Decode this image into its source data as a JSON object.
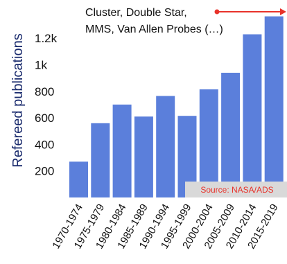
{
  "chart_data": {
    "type": "bar",
    "categories": [
      "1970-1974",
      "1975-1979",
      "1980-1984",
      "1985-1989",
      "1990-1994",
      "1995-1999",
      "2000-2004",
      "2005-2009",
      "2010-2014",
      "2015-2019"
    ],
    "values": [
      270,
      560,
      700,
      610,
      765,
      615,
      815,
      940,
      1230,
      1365
    ],
    "ylabel": "Refereed publications",
    "ytick_labels": [
      "200",
      "400",
      "600",
      "800",
      "1k",
      "1.2k"
    ],
    "ytick_values": [
      200,
      400,
      600,
      800,
      1000,
      1200
    ],
    "ylim": [
      0,
      1400
    ],
    "grid": false,
    "annotation": {
      "line1": "Cluster, Double Star,",
      "line2": "MMS, Van Allen Probes (…)"
    },
    "source": "Source: NASA/ADS",
    "colors": {
      "bar": "#5b7fdb",
      "arrow": "#e8322a",
      "source_box": "#d9d9d9",
      "source_text": "#e8322a",
      "ylabel": "#1a2b6d"
    }
  }
}
